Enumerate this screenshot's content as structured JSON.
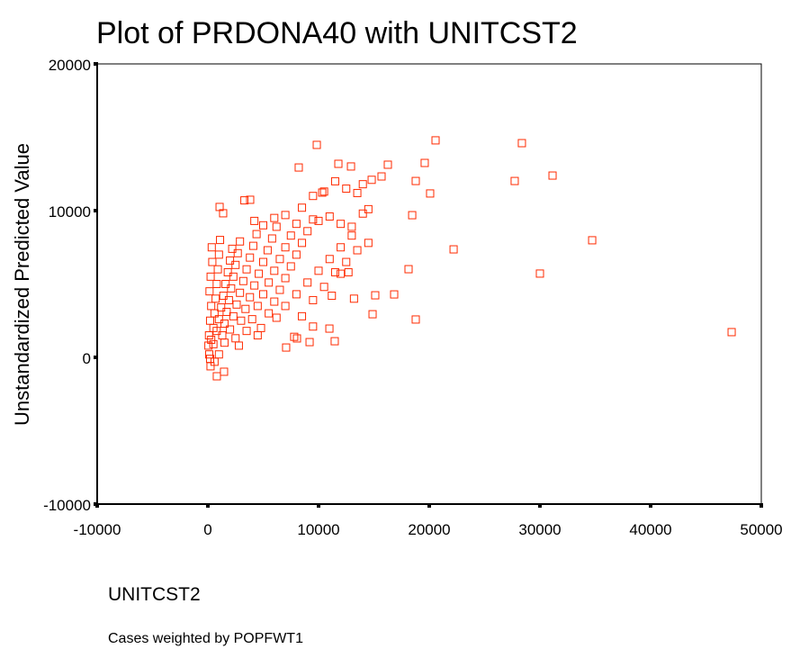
{
  "chart_data": {
    "type": "scatter",
    "title": "Plot of PRDONA40 with UNITCST2",
    "x_label": "UNITCST2",
    "y_label": "Unstandardized Predicted Value",
    "footnote": "Cases weighted by POPFWT1",
    "color": "#ff2a00",
    "xlim": [
      -10000,
      50000
    ],
    "ylim": [
      -10000,
      20000
    ],
    "xticks": [
      -10000,
      0,
      10000,
      20000,
      30000,
      40000,
      50000
    ],
    "yticks": [
      -10000,
      0,
      10000,
      20000
    ],
    "x": [
      9840,
      20570,
      28370,
      31140,
      27720,
      34720,
      30000,
      47320,
      22200,
      20080,
      19590,
      18780,
      18460,
      18130,
      18780,
      16260,
      15690,
      15120,
      14880,
      16830,
      11790,
      12930,
      8210,
      9190,
      11460,
      10980,
      7070,
      8050,
      3820,
      1060,
      1380,
      240,
      810,
      1460,
      10330,
      100,
      200,
      300,
      150,
      250,
      400,
      350,
      500,
      600,
      700,
      800,
      900,
      1000,
      1100,
      50,
      120,
      300,
      500,
      800,
      1000,
      1200,
      1400,
      1600,
      1800,
      2000,
      2200,
      1300,
      1500,
      1700,
      1900,
      2100,
      2300,
      2500,
      2700,
      2900,
      2000,
      2300,
      2600,
      2900,
      3200,
      3500,
      3800,
      4100,
      4400,
      3000,
      3400,
      3800,
      4200,
      4600,
      5000,
      5400,
      5800,
      6200,
      4000,
      4500,
      5000,
      5500,
      6000,
      6500,
      7000,
      7500,
      8000,
      5500,
      6000,
      6500,
      7000,
      7500,
      8000,
      8500,
      9000,
      9500,
      7000,
      8000,
      9000,
      10000,
      11000,
      12000,
      13000,
      8500,
      9500,
      10500,
      11500,
      12500,
      13500,
      14500,
      10000,
      11000,
      12000,
      13000,
      14000,
      14500,
      12000,
      12700,
      13200,
      11200,
      3300,
      4200,
      5000,
      6000,
      7000,
      8500,
      9500,
      10500,
      11500,
      12500,
      13500,
      14000,
      14800,
      1000,
      1500,
      2500,
      3500,
      4500,
      600,
      200,
      2800,
      4800,
      6200,
      9500,
      7800
    ],
    "y": [
      14480,
      14790,
      14600,
      12390,
      12020,
      7980,
      5710,
      1720,
      7360,
      11170,
      13250,
      12020,
      9690,
      6010,
      2580,
      13130,
      12330,
      4230,
      2940,
      4290,
      13190,
      13010,
      12940,
      1040,
      1100,
      1960,
      670,
      1290,
      10740,
      10250,
      9820,
      -610,
      -1290,
      -980,
      11230,
      1500,
      2500,
      3500,
      4500,
      5500,
      6500,
      7500,
      2000,
      3000,
      4000,
      5000,
      6000,
      7000,
      8000,
      800,
      200,
      1200,
      900,
      1800,
      2600,
      3400,
      4200,
      5000,
      5800,
      6600,
      7400,
      1500,
      2300,
      3100,
      3900,
      4700,
      5500,
      6300,
      7100,
      7900,
      1900,
      2800,
      3600,
      4400,
      5200,
      6000,
      6800,
      7600,
      8400,
      2500,
      3300,
      4100,
      4900,
      5700,
      6500,
      7300,
      8100,
      8900,
      2600,
      3500,
      4300,
      5100,
      5900,
      6700,
      7500,
      8300,
      9100,
      3000,
      3800,
      4600,
      5400,
      6200,
      7000,
      7800,
      8600,
      9400,
      3500,
      4300,
      5100,
      5900,
      6700,
      7500,
      8300,
      2800,
      3900,
      4800,
      5800,
      6500,
      7300,
      7800,
      9300,
      9600,
      9100,
      8900,
      9800,
      10100,
      5700,
      5800,
      4000,
      4200,
      10700,
      9300,
      9000,
      9500,
      9700,
      10200,
      11000,
      11300,
      12000,
      11500,
      11200,
      11800,
      12100,
      200,
      1000,
      1300,
      1800,
      1500,
      -300,
      -100,
      800,
      2000,
      2700,
      2100,
      1400
    ]
  }
}
